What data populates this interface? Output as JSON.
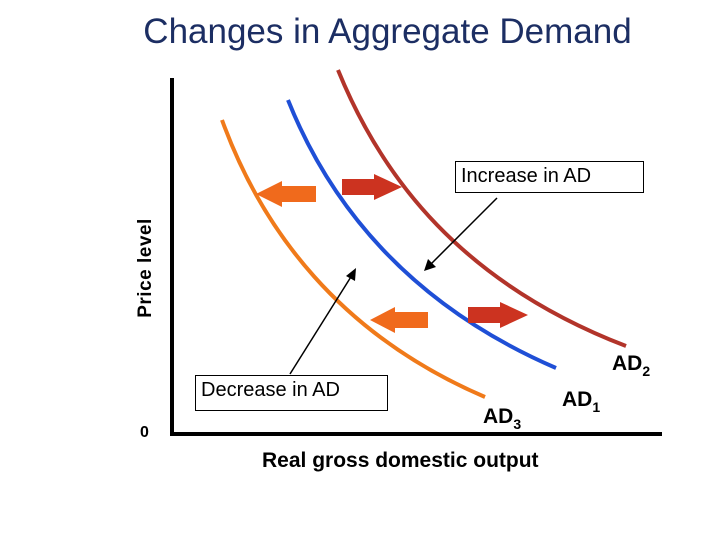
{
  "title": "Changes in Aggregate Demand",
  "axes": {
    "y_label": "Price level",
    "x_label": "Real gross domestic output",
    "origin_label": "0"
  },
  "callouts": {
    "increase": "Increase in AD",
    "decrease": "Decrease in AD"
  },
  "curves": {
    "ad1": {
      "base": "AD",
      "sub": "1",
      "color": "#1f4fd6"
    },
    "ad2": {
      "base": "AD",
      "sub": "2",
      "color": "#b2342a"
    },
    "ad3": {
      "base": "AD",
      "sub": "3",
      "color": "#f07a1a"
    }
  },
  "colors": {
    "left_arrow": "#f06a1c",
    "right_arrow": "#cc3320",
    "axis": "#000000"
  }
}
